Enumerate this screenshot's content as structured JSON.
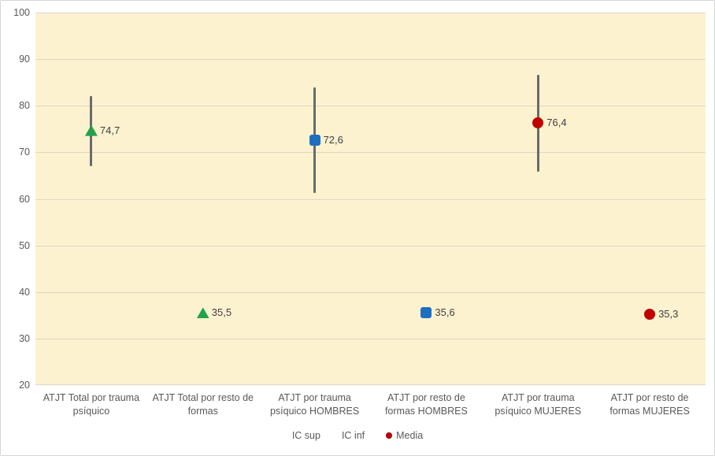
{
  "chart_data": {
    "type": "scatter",
    "title": "",
    "xlabel": "",
    "ylabel": "",
    "ylim": [
      20,
      100
    ],
    "yticks": [
      100,
      90,
      80,
      70,
      60,
      50,
      40,
      30,
      20
    ],
    "grid": true,
    "plot_background": "#fdf2d0",
    "gridline_color": "#ddd6c3",
    "errorbar_color": "#6a6a6a",
    "categories": [
      "ATJT Total por trauma psíquico",
      "ATJT Total por resto de formas",
      "ATJT por trauma psíquico HOMBRES",
      "ATJT por resto de formas HOMBRES",
      "ATJT por trauma psíquico MUJERES",
      "ATJT por resto de formas MUJERES"
    ],
    "category_label_lines": [
      [
        "ATJT Total por trauma",
        "psíquico"
      ],
      [
        "ATJT Total por resto de",
        "formas"
      ],
      [
        "ATJT por trauma",
        "psíquico HOMBRES"
      ],
      [
        "ATJT por resto de",
        "formas HOMBRES"
      ],
      [
        "ATJT por trauma",
        "psíquico MUJERES"
      ],
      [
        "ATJT por resto de",
        "formas MUJERES"
      ]
    ],
    "points": [
      {
        "media": 74.7,
        "label": "74,7",
        "ic_sup": 82.1,
        "ic_inf": 67.0,
        "marker": "triangle",
        "color": "#21a14b"
      },
      {
        "media": 35.5,
        "label": "35,5",
        "ic_sup": null,
        "ic_inf": null,
        "marker": "triangle",
        "color": "#21a14b"
      },
      {
        "media": 72.6,
        "label": "72,6",
        "ic_sup": 83.9,
        "ic_inf": 61.3,
        "marker": "square",
        "color": "#1e6fc0"
      },
      {
        "media": 35.6,
        "label": "35,6",
        "ic_sup": null,
        "ic_inf": null,
        "marker": "square",
        "color": "#1e6fc0"
      },
      {
        "media": 76.4,
        "label": "76,4",
        "ic_sup": 86.6,
        "ic_inf": 65.9,
        "marker": "circle",
        "color": "#c00000"
      },
      {
        "media": 35.3,
        "label": "35,3",
        "ic_sup": null,
        "ic_inf": null,
        "marker": "circle",
        "color": "#c00000"
      }
    ],
    "legend_position": "bottom",
    "legend_items": [
      {
        "label": "IC sup",
        "marker": "none",
        "color": null
      },
      {
        "label": "IC inf",
        "marker": "none",
        "color": null
      },
      {
        "label": "Media",
        "marker": "circle",
        "color": "#c00000"
      }
    ]
  }
}
